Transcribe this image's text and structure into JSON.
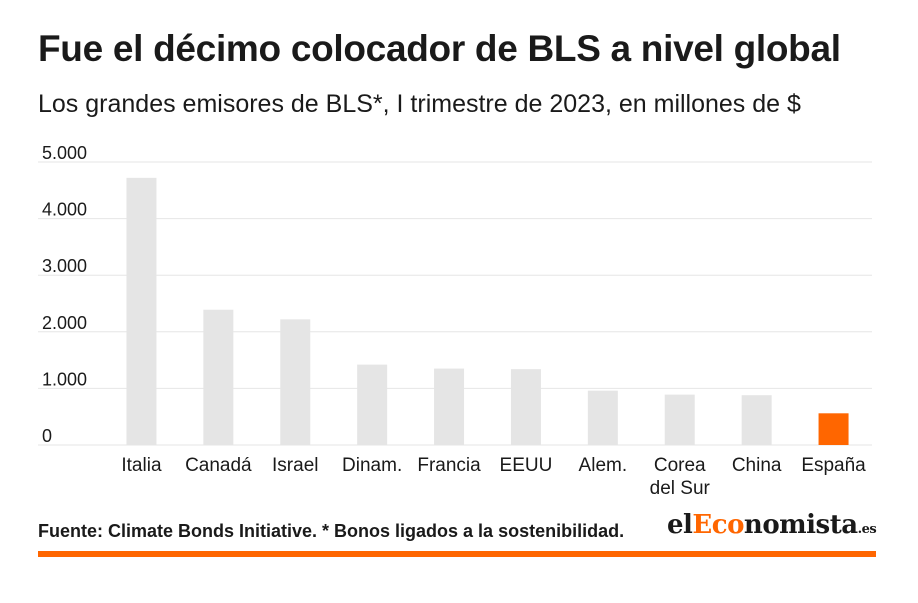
{
  "header": {
    "title": "Fue el décimo colocador de BLS a nivel global",
    "subtitle": "Los grandes emisores de BLS*, I trimestre de 2023, en millones de $"
  },
  "footer": {
    "source": "Fuente: Climate Bonds Initiative. * Bonos ligados a la sostenibilidad.",
    "logo_part1": "el",
    "logo_part2": "Eco",
    "logo_part3": "nomista",
    "logo_suffix": ".es"
  },
  "colors": {
    "bar": "#e5e5e5",
    "highlight": "#ff6600",
    "grid": "#e6e6e6",
    "text": "#1a1a1a"
  },
  "chart_data": {
    "type": "bar",
    "title": "Fue el décimo colocador de BLS a nivel global",
    "subtitle": "Los grandes emisores de BLS*, I trimestre de 2023, en millones de $",
    "categories": [
      [
        "Italia"
      ],
      [
        "Canadá"
      ],
      [
        "Israel"
      ],
      [
        "Dinam."
      ],
      [
        "Francia"
      ],
      [
        "EEUU"
      ],
      [
        "Alem."
      ],
      [
        "Corea",
        "del Sur"
      ],
      [
        "China"
      ],
      [
        "España"
      ]
    ],
    "values": [
      4720,
      2390,
      2220,
      1420,
      1350,
      1340,
      960,
      890,
      880,
      560
    ],
    "highlight_index": 9,
    "ylim": [
      0,
      5000
    ],
    "yticks": [
      0,
      1000,
      2000,
      3000,
      4000,
      5000
    ],
    "ytick_labels": [
      "0",
      "1.000",
      "2.000",
      "3.000",
      "4.000",
      "5.000"
    ],
    "xlabel": "",
    "ylabel": "",
    "grid": true,
    "legend": "none"
  }
}
